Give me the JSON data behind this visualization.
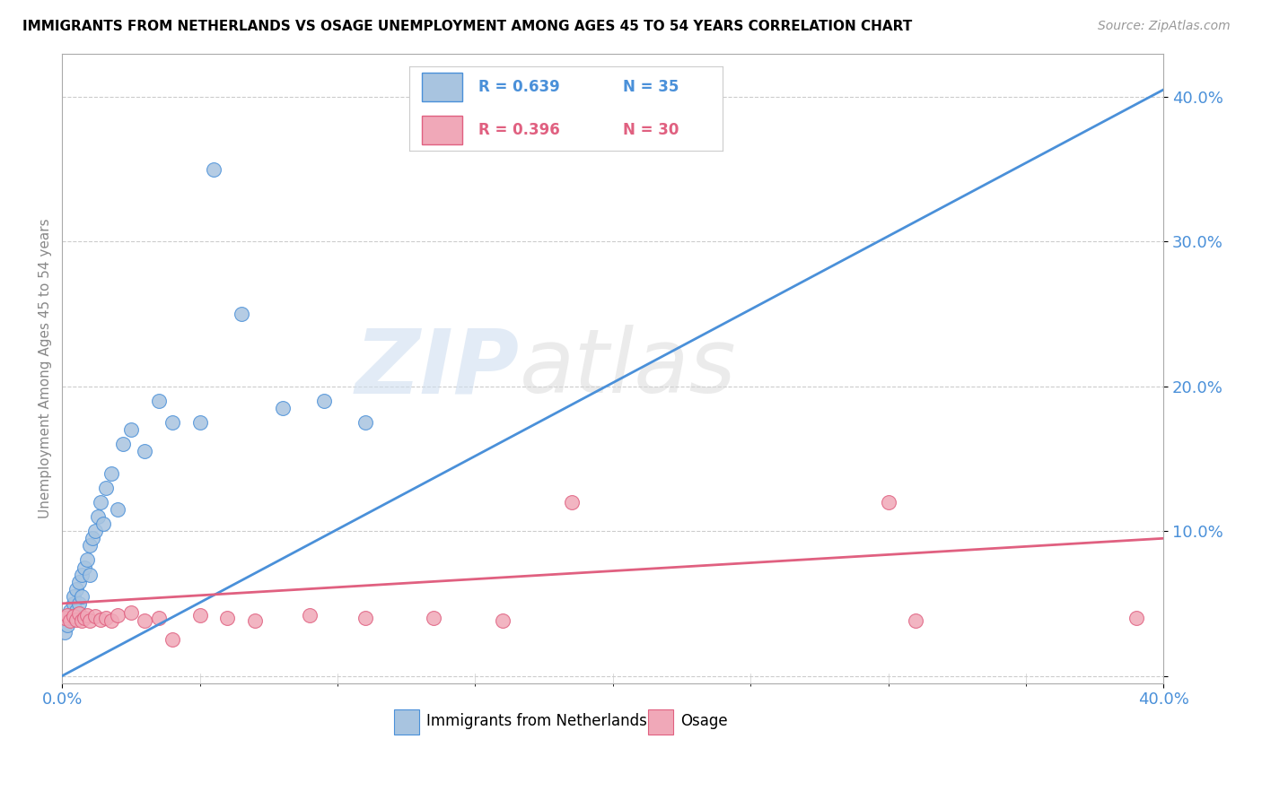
{
  "title": "IMMIGRANTS FROM NETHERLANDS VS OSAGE UNEMPLOYMENT AMONG AGES 45 TO 54 YEARS CORRELATION CHART",
  "source": "Source: ZipAtlas.com",
  "ylabel": "Unemployment Among Ages 45 to 54 years",
  "xlim": [
    0.0,
    0.4
  ],
  "ylim": [
    -0.02,
    0.43
  ],
  "legend_r1_text": "R = 0.639   N = 35",
  "legend_r2_text": "R = 0.396   N = 30",
  "color_blue": "#a8c4e0",
  "color_pink": "#f0a8b8",
  "line_color_blue": "#4a90d9",
  "line_color_pink": "#e06080",
  "watermark_zip": "ZIP",
  "watermark_atlas": "atlas",
  "nl_x": [
    0.001,
    0.002,
    0.003,
    0.003,
    0.004,
    0.004,
    0.005,
    0.005,
    0.006,
    0.006,
    0.007,
    0.007,
    0.008,
    0.009,
    0.01,
    0.01,
    0.011,
    0.012,
    0.013,
    0.014,
    0.015,
    0.016,
    0.018,
    0.02,
    0.022,
    0.025,
    0.03,
    0.035,
    0.04,
    0.05,
    0.055,
    0.065,
    0.08,
    0.095,
    0.11
  ],
  "nl_y": [
    0.03,
    0.035,
    0.04,
    0.045,
    0.05,
    0.055,
    0.06,
    0.045,
    0.065,
    0.05,
    0.055,
    0.07,
    0.075,
    0.08,
    0.09,
    0.07,
    0.095,
    0.1,
    0.11,
    0.12,
    0.105,
    0.13,
    0.14,
    0.115,
    0.16,
    0.17,
    0.155,
    0.19,
    0.175,
    0.175,
    0.35,
    0.25,
    0.185,
    0.19,
    0.175
  ],
  "os_x": [
    0.001,
    0.002,
    0.003,
    0.004,
    0.005,
    0.006,
    0.007,
    0.008,
    0.009,
    0.01,
    0.012,
    0.014,
    0.016,
    0.018,
    0.02,
    0.025,
    0.03,
    0.035,
    0.04,
    0.05,
    0.06,
    0.07,
    0.09,
    0.11,
    0.135,
    0.16,
    0.185,
    0.3,
    0.31,
    0.39
  ],
  "os_y": [
    0.04,
    0.042,
    0.038,
    0.041,
    0.039,
    0.043,
    0.038,
    0.04,
    0.042,
    0.038,
    0.041,
    0.039,
    0.04,
    0.038,
    0.042,
    0.044,
    0.038,
    0.04,
    0.025,
    0.042,
    0.04,
    0.038,
    0.042,
    0.04,
    0.04,
    0.038,
    0.12,
    0.12,
    0.038,
    0.04
  ],
  "nl_trend_x": [
    0.0,
    0.4
  ],
  "nl_trend_y": [
    0.0,
    0.405
  ],
  "os_trend_x": [
    0.0,
    0.4
  ],
  "os_trend_y": [
    0.05,
    0.095
  ]
}
